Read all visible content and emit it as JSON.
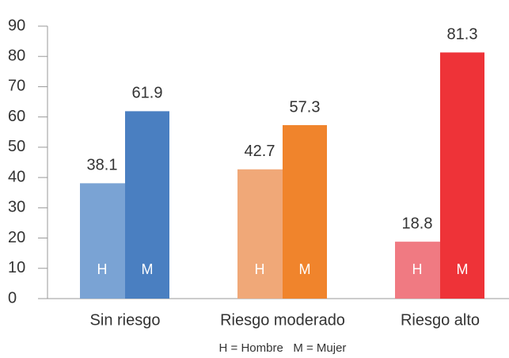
{
  "chart_data": {
    "type": "bar",
    "categories": [
      "Sin riesgo",
      "Riesgo moderado",
      "Riesgo alto"
    ],
    "series": [
      {
        "name": "H",
        "colors": [
          "#7aa3d4",
          "#f0a878",
          "#f07a82"
        ],
        "values": [
          38.1,
          42.7,
          18.8
        ]
      },
      {
        "name": "M",
        "colors": [
          "#4a7fc1",
          "#f0842c",
          "#ee3338"
        ],
        "values": [
          61.9,
          57.3,
          81.3
        ]
      }
    ],
    "ylim": [
      0,
      90
    ],
    "yticks": [
      0,
      10,
      20,
      30,
      40,
      50,
      60,
      70,
      80,
      90
    ],
    "annotation": "H = Hombre   M = Mujer"
  }
}
